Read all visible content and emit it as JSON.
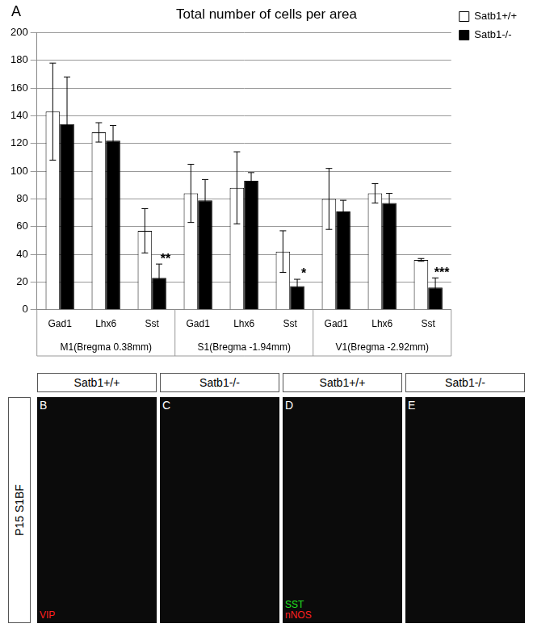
{
  "chart_data": {
    "type": "bar",
    "panel_label": "A",
    "title": "Total number of cells per area",
    "groups": [
      {
        "label": "M1(Bregma 0.38mm)",
        "categories": [
          "Gad1",
          "Lhx6",
          "Sst"
        ]
      },
      {
        "label": "S1(Bregma -1.94mm)",
        "categories": [
          "Gad1",
          "Lhx6",
          "Sst"
        ]
      },
      {
        "label": "V1(Bregma -2.92mm)",
        "categories": [
          "Gad1",
          "Lhx6",
          "Sst"
        ]
      }
    ],
    "series": [
      {
        "name": "Satb1+/+",
        "color": "#ffffff",
        "values": [
          143,
          128,
          57,
          84,
          88,
          42,
          80,
          84,
          36
        ],
        "errors": [
          35,
          7,
          16,
          21,
          26,
          15,
          22,
          7,
          1
        ]
      },
      {
        "name": "Satb1-/-",
        "color": "#000000",
        "values": [
          134,
          122,
          23,
          79,
          93,
          17,
          71,
          77,
          16
        ],
        "errors": [
          34,
          11,
          10,
          15,
          6,
          5,
          8,
          7,
          7
        ]
      }
    ],
    "annotations": [
      {
        "group": "M1(Bregma 0.38mm)",
        "category": "Sst",
        "series": "Satb1-/-",
        "text": "**"
      },
      {
        "group": "S1(Bregma -1.94mm)",
        "category": "Sst",
        "series": "Satb1-/-",
        "text": "*"
      },
      {
        "group": "V1(Bregma -2.92mm)",
        "category": "Sst",
        "series": "Satb1-/-",
        "text": "***"
      }
    ],
    "ylim": [
      0,
      200
    ],
    "yticks": [
      0,
      20,
      40,
      60,
      80,
      100,
      120,
      140,
      160,
      180,
      200
    ],
    "grid": true,
    "legend": "top right"
  },
  "image_panels": {
    "row_label": "P15 S1BF",
    "panels": [
      {
        "letter": "B",
        "genotype": "Satb1+/+",
        "stains": [
          {
            "name": "VIP",
            "color": "#ff2020"
          }
        ]
      },
      {
        "letter": "C",
        "genotype": "Satb1-/-",
        "stains": []
      },
      {
        "letter": "D",
        "genotype": "Satb1+/+",
        "stains": [
          {
            "name": "SST",
            "color": "#20e020"
          },
          {
            "name": "nNOS",
            "color": "#ff2020"
          }
        ]
      },
      {
        "letter": "E",
        "genotype": "Satb1-/-",
        "stains": []
      }
    ]
  }
}
